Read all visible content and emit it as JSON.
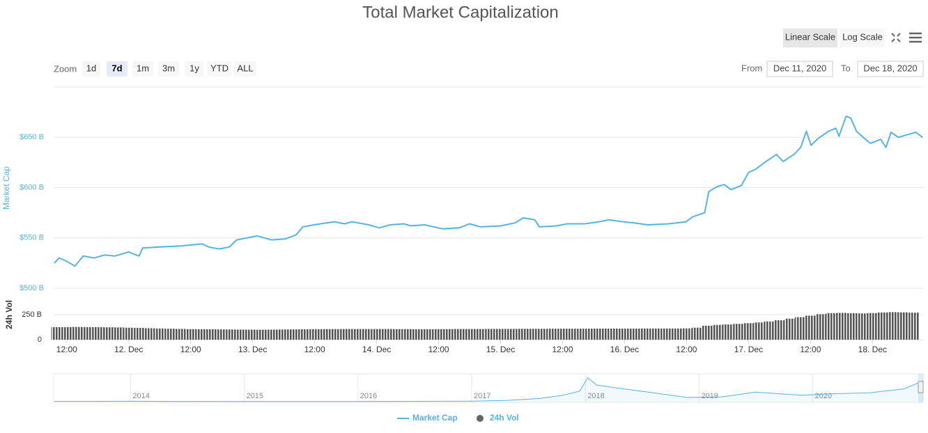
{
  "controls": {
    "zoom_label": "Zoom",
    "zoom_buttons": [
      "1d",
      "7d",
      "1m",
      "3m",
      "1y",
      "YTD",
      "ALL"
    ],
    "selected_zoom": 1,
    "scale_buttons": [
      "Linear Scale",
      "Log Scale"
    ],
    "selected_scale": 0,
    "from_label": "From",
    "from": "Dec 11, 2020",
    "to_label": "To",
    "to": "Dec 18, 2020"
  },
  "chart_data": {
    "type": "line",
    "title": "Total Market Capitalization",
    "ylabel": "Market Cap",
    "y2label": "24h Vol",
    "grid": true,
    "x": [
      9.6,
      10.5,
      11.9,
      13.6,
      15.2,
      17.3,
      19.3,
      21.3,
      24.0,
      26.0,
      26.7,
      30.1,
      34.1,
      38.2,
      39.5,
      41.5,
      43.5,
      44.9,
      48.9,
      51.6,
      54.3,
      56.4,
      57.7,
      61.1,
      63.8,
      65.8,
      67.2,
      70.5,
      72.5,
      74.6,
      77.3,
      78.6,
      81.3,
      84.7,
      88.0,
      90.0,
      92.1,
      96.1,
      98.8,
      100.4,
      102.6,
      103.5,
      106.9,
      108.9,
      112.3,
      115.0,
      117.0,
      119.7,
      121.8,
      124.5,
      128.5,
      131.9,
      133.2,
      135.5,
      136.3,
      137.9,
      139.3,
      140.6,
      142.6,
      144.0,
      145.3,
      147.4,
      149.4,
      150.7,
      152.8,
      154.1,
      155.2,
      156.1,
      157.5,
      159.5,
      160.9,
      161.5,
      162.9,
      163.8,
      164.9,
      166.2,
      167.6,
      169.6,
      170.6,
      171.6,
      173.0,
      174.3,
      176.4,
      177.7
    ],
    "series": [
      {
        "name": "Market Cap",
        "color": "#55b3e3",
        "values": [
          525,
          530,
          527,
          522,
          532,
          530,
          533,
          532,
          536,
          532,
          540,
          541,
          542,
          544,
          541,
          539,
          541,
          548,
          552,
          548,
          549,
          553,
          561,
          564,
          566,
          564,
          566,
          563,
          560,
          563,
          564,
          562,
          563,
          559,
          560,
          564,
          561,
          562,
          565,
          570,
          568,
          561,
          562,
          564,
          564,
          566,
          568,
          566,
          565,
          563,
          564,
          566,
          571,
          575,
          596,
          601,
          603,
          598,
          602,
          615,
          618,
          626,
          633,
          626,
          633,
          640,
          656,
          642,
          649,
          656,
          659,
          651,
          671,
          669,
          656,
          650,
          644,
          648,
          640,
          655,
          650,
          652,
          655,
          650
        ]
      },
      {
        "name": "24h Vol",
        "color": "#666666",
        "type": "bar",
        "axis": "y2",
        "x": [
          10,
          12,
          14,
          16,
          18,
          20,
          22,
          24,
          26,
          28,
          30,
          32,
          34,
          36,
          38,
          40,
          42,
          44,
          46,
          48,
          50,
          52,
          54,
          56,
          58,
          60,
          62,
          64,
          66,
          68,
          70,
          72,
          74,
          76,
          78,
          80,
          82,
          84,
          86,
          88,
          90,
          92,
          94,
          96,
          98,
          100,
          102,
          104,
          106,
          108,
          110,
          112,
          114,
          116,
          118,
          120,
          122,
          124,
          126,
          128,
          130,
          132,
          134,
          136,
          138,
          140,
          142,
          144,
          146,
          148,
          150,
          152,
          154,
          156,
          158,
          160,
          162,
          164,
          166,
          168,
          170,
          172,
          174,
          176
        ],
        "values": [
          125,
          126,
          127,
          126,
          125,
          124,
          123,
          120,
          118,
          115,
          112,
          110,
          108,
          106,
          105,
          104,
          103,
          102,
          101,
          100,
          100,
          101,
          102,
          103,
          104,
          105,
          106,
          106,
          107,
          107,
          107,
          107,
          107,
          106,
          106,
          105,
          105,
          106,
          106,
          107,
          107,
          107,
          108,
          108,
          108,
          109,
          109,
          109,
          110,
          110,
          110,
          110,
          111,
          111,
          111,
          111,
          111,
          112,
          112,
          112,
          112,
          113,
          120,
          140,
          148,
          152,
          158,
          165,
          172,
          182,
          194,
          210,
          225,
          240,
          255,
          265,
          268,
          264,
          262,
          266,
          272,
          275,
          273,
          270
        ]
      }
    ],
    "xlim": [
      9.6,
      177.8
    ],
    "xticks": [
      {
        "value": 12,
        "label": "12:00"
      },
      {
        "value": 24,
        "label": "12. Dec"
      },
      {
        "value": 36,
        "label": "12:00"
      },
      {
        "value": 48,
        "label": "13. Dec"
      },
      {
        "value": 60,
        "label": "12:00"
      },
      {
        "value": 72,
        "label": "14. Dec"
      },
      {
        "value": 84,
        "label": "12:00"
      },
      {
        "value": 96,
        "label": "15. Dec"
      },
      {
        "value": 108,
        "label": "12:00"
      },
      {
        "value": 120,
        "label": "16. Dec"
      },
      {
        "value": 132,
        "label": "12:00"
      },
      {
        "value": 144,
        "label": "17. Dec"
      },
      {
        "value": 156,
        "label": "12:00"
      },
      {
        "value": 168,
        "label": "18. Dec"
      }
    ],
    "ylim": [
      500,
      700
    ],
    "yticks": [
      {
        "value": 500,
        "label": "$500 B"
      },
      {
        "value": 550,
        "label": "$550 B"
      },
      {
        "value": 600,
        "label": "$600 B"
      },
      {
        "value": 650,
        "label": "$650 B"
      }
    ],
    "y2lim": [
      0,
      500
    ],
    "y2ticks": [
      0,
      {
        "value": 250,
        "label": "250 B"
      }
    ],
    "navigator": {
      "color": "#55b3e3",
      "x": [
        2013.33,
        2014,
        2014.5,
        2015,
        2015.5,
        2016,
        2016.5,
        2017,
        2017.3,
        2017.6,
        2017.8,
        2017.95,
        2018.02,
        2018.1,
        2018.3,
        2018.6,
        2018.9,
        2019.2,
        2019.5,
        2019.9,
        2020.2,
        2020.5,
        2020.8,
        2020.97
      ],
      "values": [
        10,
        12,
        8,
        5,
        6,
        7,
        10,
        18,
        40,
        100,
        200,
        330,
        750,
        520,
        420,
        280,
        130,
        150,
        300,
        200,
        250,
        280,
        400,
        650
      ],
      "xlim": [
        2013.33,
        2020.97
      ],
      "ylim": [
        0,
        850
      ],
      "xticks": [
        2014,
        2015,
        2016,
        2017,
        2018,
        2019,
        2020
      ]
    }
  }
}
